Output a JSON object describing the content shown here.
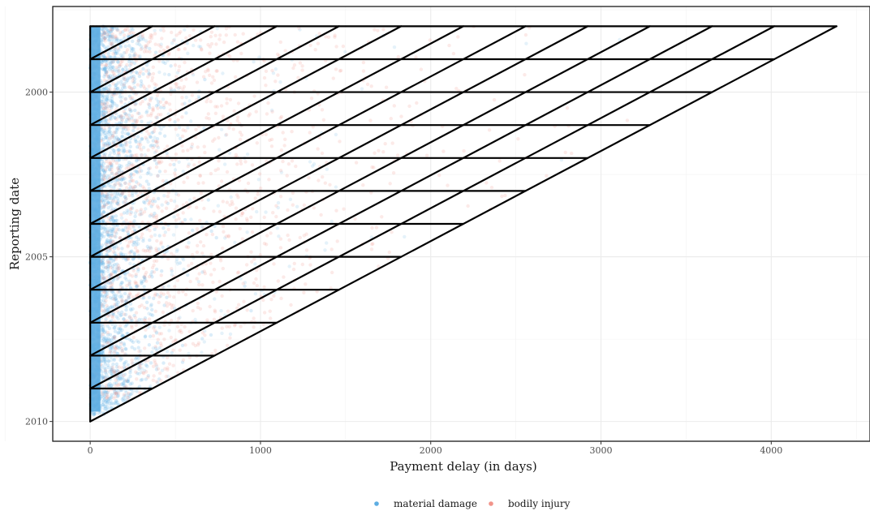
{
  "chart_data": {
    "type": "scatter",
    "xlabel": "Payment delay (in days)",
    "ylabel": "Reporting date",
    "x_ticks": [
      0,
      1000,
      2000,
      3000,
      4000
    ],
    "x_tick_labels": [
      "0",
      "1000",
      "2000",
      "3000",
      "4000"
    ],
    "y_ticks": [
      2000,
      2005,
      2010
    ],
    "y_tick_labels": [
      "2000",
      "2005",
      "2010"
    ],
    "xlim": [
      -220,
      4580
    ],
    "ylim": [
      2010.6,
      1997.4
    ],
    "y_reversed": true,
    "grid": true,
    "legend_position": "bottom",
    "series": [
      {
        "name": "material damage",
        "color": "#5dade2",
        "points": "dense cloud concentrated near 0–600 days delay, all reporting years 1998–2010"
      },
      {
        "name": "bodily injury",
        "color": "#f1948a",
        "points": "sparser cloud extending up to ~4300 days delay, reporting years 1998–2009"
      }
    ],
    "triangle_overlay": {
      "description": "Run-off triangle: horizontal lines at yearly reporting dates and diagonal calendar-year lines",
      "origin_year": 1998,
      "end_year": 2010,
      "max_delay_days": 4383
    }
  }
}
